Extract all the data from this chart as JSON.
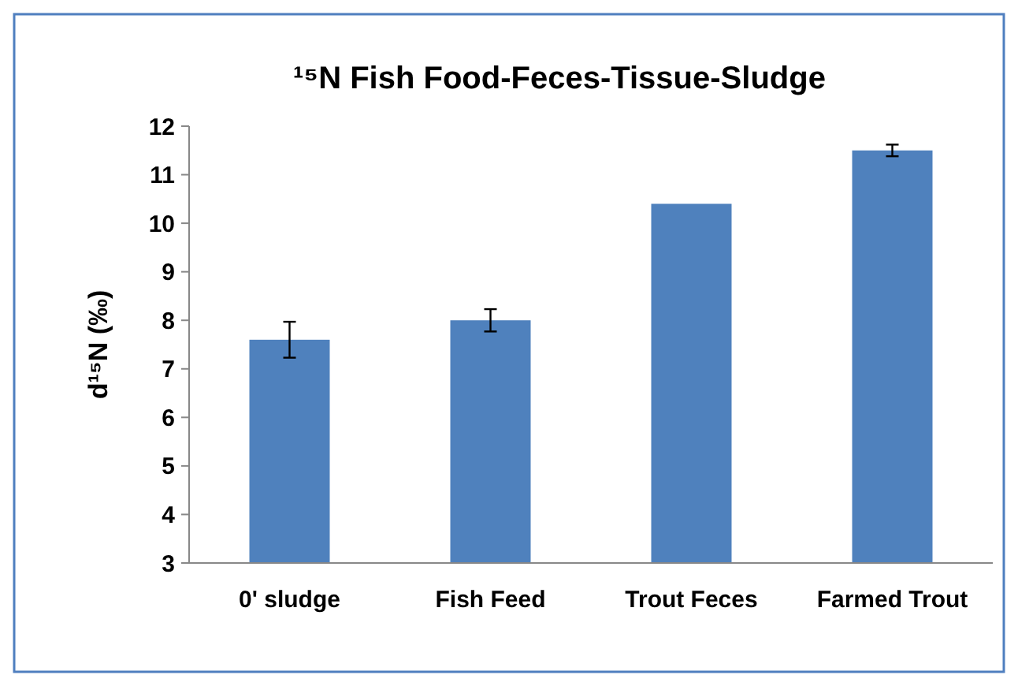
{
  "chart_data": {
    "type": "bar",
    "title": "¹⁵N  Fish Food-Feces-Tissue-Sludge",
    "ylabel": "d¹⁵N (‰)",
    "categories": [
      "0' sludge",
      "Fish Feed",
      "Trout Feces",
      "Farmed Trout"
    ],
    "values": [
      7.6,
      8.0,
      10.4,
      11.5
    ],
    "errors": [
      0.37,
      0.23,
      null,
      0.12
    ],
    "color": "#4f81bd",
    "ylim": [
      3,
      12
    ],
    "yticks": [
      3,
      4,
      5,
      6,
      7,
      8,
      9,
      10,
      11,
      12
    ],
    "grid": false
  }
}
